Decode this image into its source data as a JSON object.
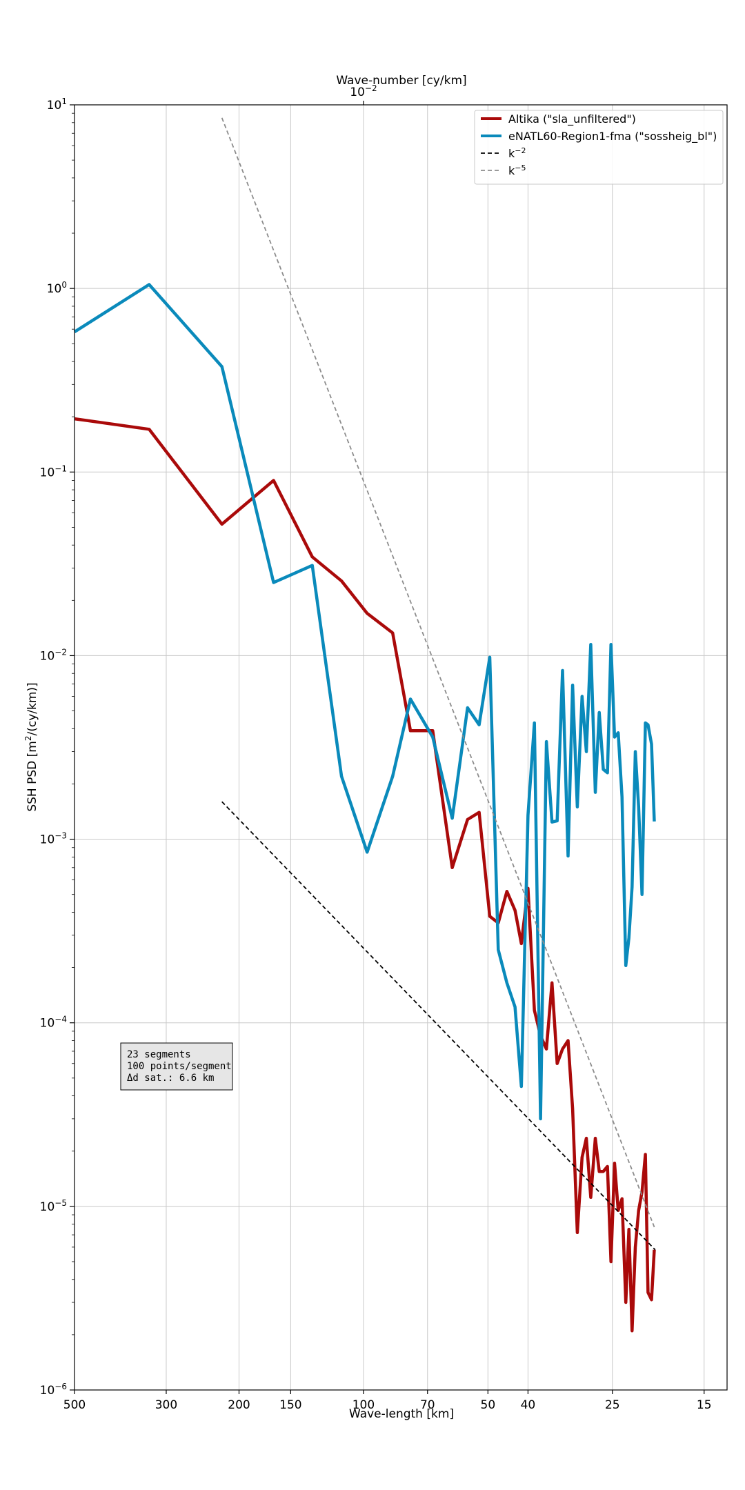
{
  "chart_data": {
    "type": "line",
    "title": "",
    "xlabel": "Wave-length [km]",
    "xlabel_top": "Wave-number [cy/km]",
    "ylabel": "SSH PSD [m²/(cy/km)]",
    "x_scale": "reciprocal (wavenumber, log)",
    "y_scale": "log",
    "xlim_km": [
      500,
      13.2
    ],
    "ylim": [
      1e-06,
      10
    ],
    "grid": true,
    "legend_position": "top-right",
    "x_ticks_bottom": [
      {
        "value": 500,
        "label": "500"
      },
      {
        "value": 300,
        "label": "300"
      },
      {
        "value": 200,
        "label": "200"
      },
      {
        "value": 150,
        "label": "150"
      },
      {
        "value": 100,
        "label": "100"
      },
      {
        "value": 70,
        "label": "70"
      },
      {
        "value": 50,
        "label": "50"
      },
      {
        "value": 40,
        "label": "40"
      },
      {
        "value": 25,
        "label": "25"
      },
      {
        "value": 15,
        "label": "15"
      }
    ],
    "x_ticks_top": [
      {
        "value_km": 100,
        "label_base": "10",
        "label_exp": "−2"
      }
    ],
    "y_ticks": [
      {
        "value": 10,
        "base": "10",
        "exp": "1"
      },
      {
        "value": 1,
        "base": "10",
        "exp": "0"
      },
      {
        "value": 0.1,
        "base": "10",
        "exp": "−1"
      },
      {
        "value": 0.01,
        "base": "10",
        "exp": "−2"
      },
      {
        "value": 0.001,
        "base": "10",
        "exp": "−3"
      },
      {
        "value": 0.0001,
        "base": "10",
        "exp": "−4"
      },
      {
        "value": 1e-05,
        "base": "10",
        "exp": "−5"
      },
      {
        "value": 1e-06,
        "base": "10",
        "exp": "−6"
      }
    ],
    "series": [
      {
        "name": "Altika (\"sla_unfiltered\")",
        "color": "#aa0a0a",
        "style": "solid",
        "points": [
          [
            500,
            0.195
          ],
          [
            330,
            0.171
          ],
          [
            220,
            0.052
          ],
          [
            165,
            0.09
          ],
          [
            133,
            0.0345
          ],
          [
            113,
            0.0255
          ],
          [
            98,
            0.017
          ],
          [
            85,
            0.0133
          ],
          [
            77,
            0.0039
          ],
          [
            68,
            0.0039
          ],
          [
            61,
            0.0007
          ],
          [
            56,
            0.00128
          ],
          [
            52.5,
            0.0014
          ],
          [
            49.5,
            0.00038
          ],
          [
            47.2,
            0.00035
          ],
          [
            45,
            0.00052
          ],
          [
            43,
            0.00041
          ],
          [
            41.5,
            0.00027
          ],
          [
            40,
            0.00054
          ],
          [
            38.6,
            0.000117
          ],
          [
            37.3,
            8.5e-05
          ],
          [
            36.1,
            7.2e-05
          ],
          [
            35,
            0.000165
          ],
          [
            34,
            6e-05
          ],
          [
            33,
            7.2e-05
          ],
          [
            32,
            8e-05
          ],
          [
            31.2,
            3.4e-05
          ],
          [
            30.4,
            7.2e-06
          ],
          [
            29.6,
            1.85e-05
          ],
          [
            28.9,
            2.35e-05
          ],
          [
            28.2,
            1.12e-05
          ],
          [
            27.5,
            2.35e-05
          ],
          [
            26.9,
            1.55e-05
          ],
          [
            26.3,
            1.55e-05
          ],
          [
            25.7,
            1.65e-05
          ],
          [
            25.2,
            5e-06
          ],
          [
            24.7,
            1.72e-05
          ],
          [
            24.2,
            9.5e-06
          ],
          [
            23.7,
            1.1e-05
          ],
          [
            23.2,
            3e-06
          ],
          [
            22.8,
            7.5e-06
          ],
          [
            22.4,
            2.1e-06
          ],
          [
            22,
            6e-06
          ],
          [
            21.6,
            9.5e-06
          ],
          [
            21.2,
            1.2e-05
          ],
          [
            20.8,
            1.92e-05
          ],
          [
            20.5,
            3.4e-06
          ],
          [
            20.1,
            3.1e-06
          ],
          [
            19.8,
            5.8e-06
          ]
        ]
      },
      {
        "name": "eNATL60-Region1-fma (\"sossheig_bl\")",
        "color": "#0a8abb",
        "style": "solid",
        "points": [
          [
            500,
            0.58
          ],
          [
            330,
            1.05
          ],
          [
            220,
            0.375
          ],
          [
            165,
            0.025
          ],
          [
            133,
            0.031
          ],
          [
            113,
            0.0022
          ],
          [
            98,
            0.00085
          ],
          [
            85,
            0.0022
          ],
          [
            77,
            0.0058
          ],
          [
            68,
            0.0036
          ],
          [
            61,
            0.0013
          ],
          [
            56,
            0.0052
          ],
          [
            52.5,
            0.0042
          ],
          [
            49.5,
            0.0098
          ],
          [
            47.2,
            0.00025
          ],
          [
            45,
            0.000165
          ],
          [
            43,
            0.000122
          ],
          [
            41.5,
            4.5e-05
          ],
          [
            40,
            0.00135
          ],
          [
            38.6,
            0.0043
          ],
          [
            37.3,
            3e-05
          ],
          [
            36.1,
            0.0034
          ],
          [
            35,
            0.00124
          ],
          [
            34,
            0.00126
          ],
          [
            33,
            0.0083
          ],
          [
            32,
            0.00081
          ],
          [
            31.2,
            0.0069
          ],
          [
            30.4,
            0.0015
          ],
          [
            29.6,
            0.006
          ],
          [
            28.9,
            0.003
          ],
          [
            28.2,
            0.0115
          ],
          [
            27.5,
            0.0018
          ],
          [
            26.9,
            0.0049
          ],
          [
            26.3,
            0.0024
          ],
          [
            25.7,
            0.0023
          ],
          [
            25.2,
            0.0115
          ],
          [
            24.7,
            0.0036
          ],
          [
            24.2,
            0.0038
          ],
          [
            23.7,
            0.0017
          ],
          [
            23.2,
            0.000205
          ],
          [
            22.8,
            0.00029
          ],
          [
            22.4,
            0.00055
          ],
          [
            22,
            0.003
          ],
          [
            21.6,
            0.0015
          ],
          [
            21.2,
            0.0005
          ],
          [
            20.8,
            0.0043
          ],
          [
            20.5,
            0.0042
          ],
          [
            20.1,
            0.0033
          ],
          [
            19.8,
            0.00125
          ]
        ]
      },
      {
        "name": "k⁻²",
        "color": "#000000",
        "style": "dashed",
        "points": [
          [
            220,
            0.0016
          ],
          [
            19.7,
            5.8e-06
          ]
        ]
      },
      {
        "name": "k⁻⁵",
        "color": "#8c8c8c",
        "style": "dashed",
        "points": [
          [
            220,
            8.5
          ],
          [
            19.7,
            7.5e-06
          ]
        ]
      }
    ],
    "legend_entries": [
      {
        "label": "Altika (\"sla_unfiltered\")"
      },
      {
        "label": "eNATL60-Region1-fma (\"sossheig_bl\")"
      },
      {
        "label_base": "k",
        "label_exp": "−2"
      },
      {
        "label_base": "k",
        "label_exp": "−5"
      }
    ],
    "annotation": {
      "lines": [
        "23 segments",
        "100 points/segment",
        "Δd sat.: 6.6 km"
      ]
    }
  }
}
